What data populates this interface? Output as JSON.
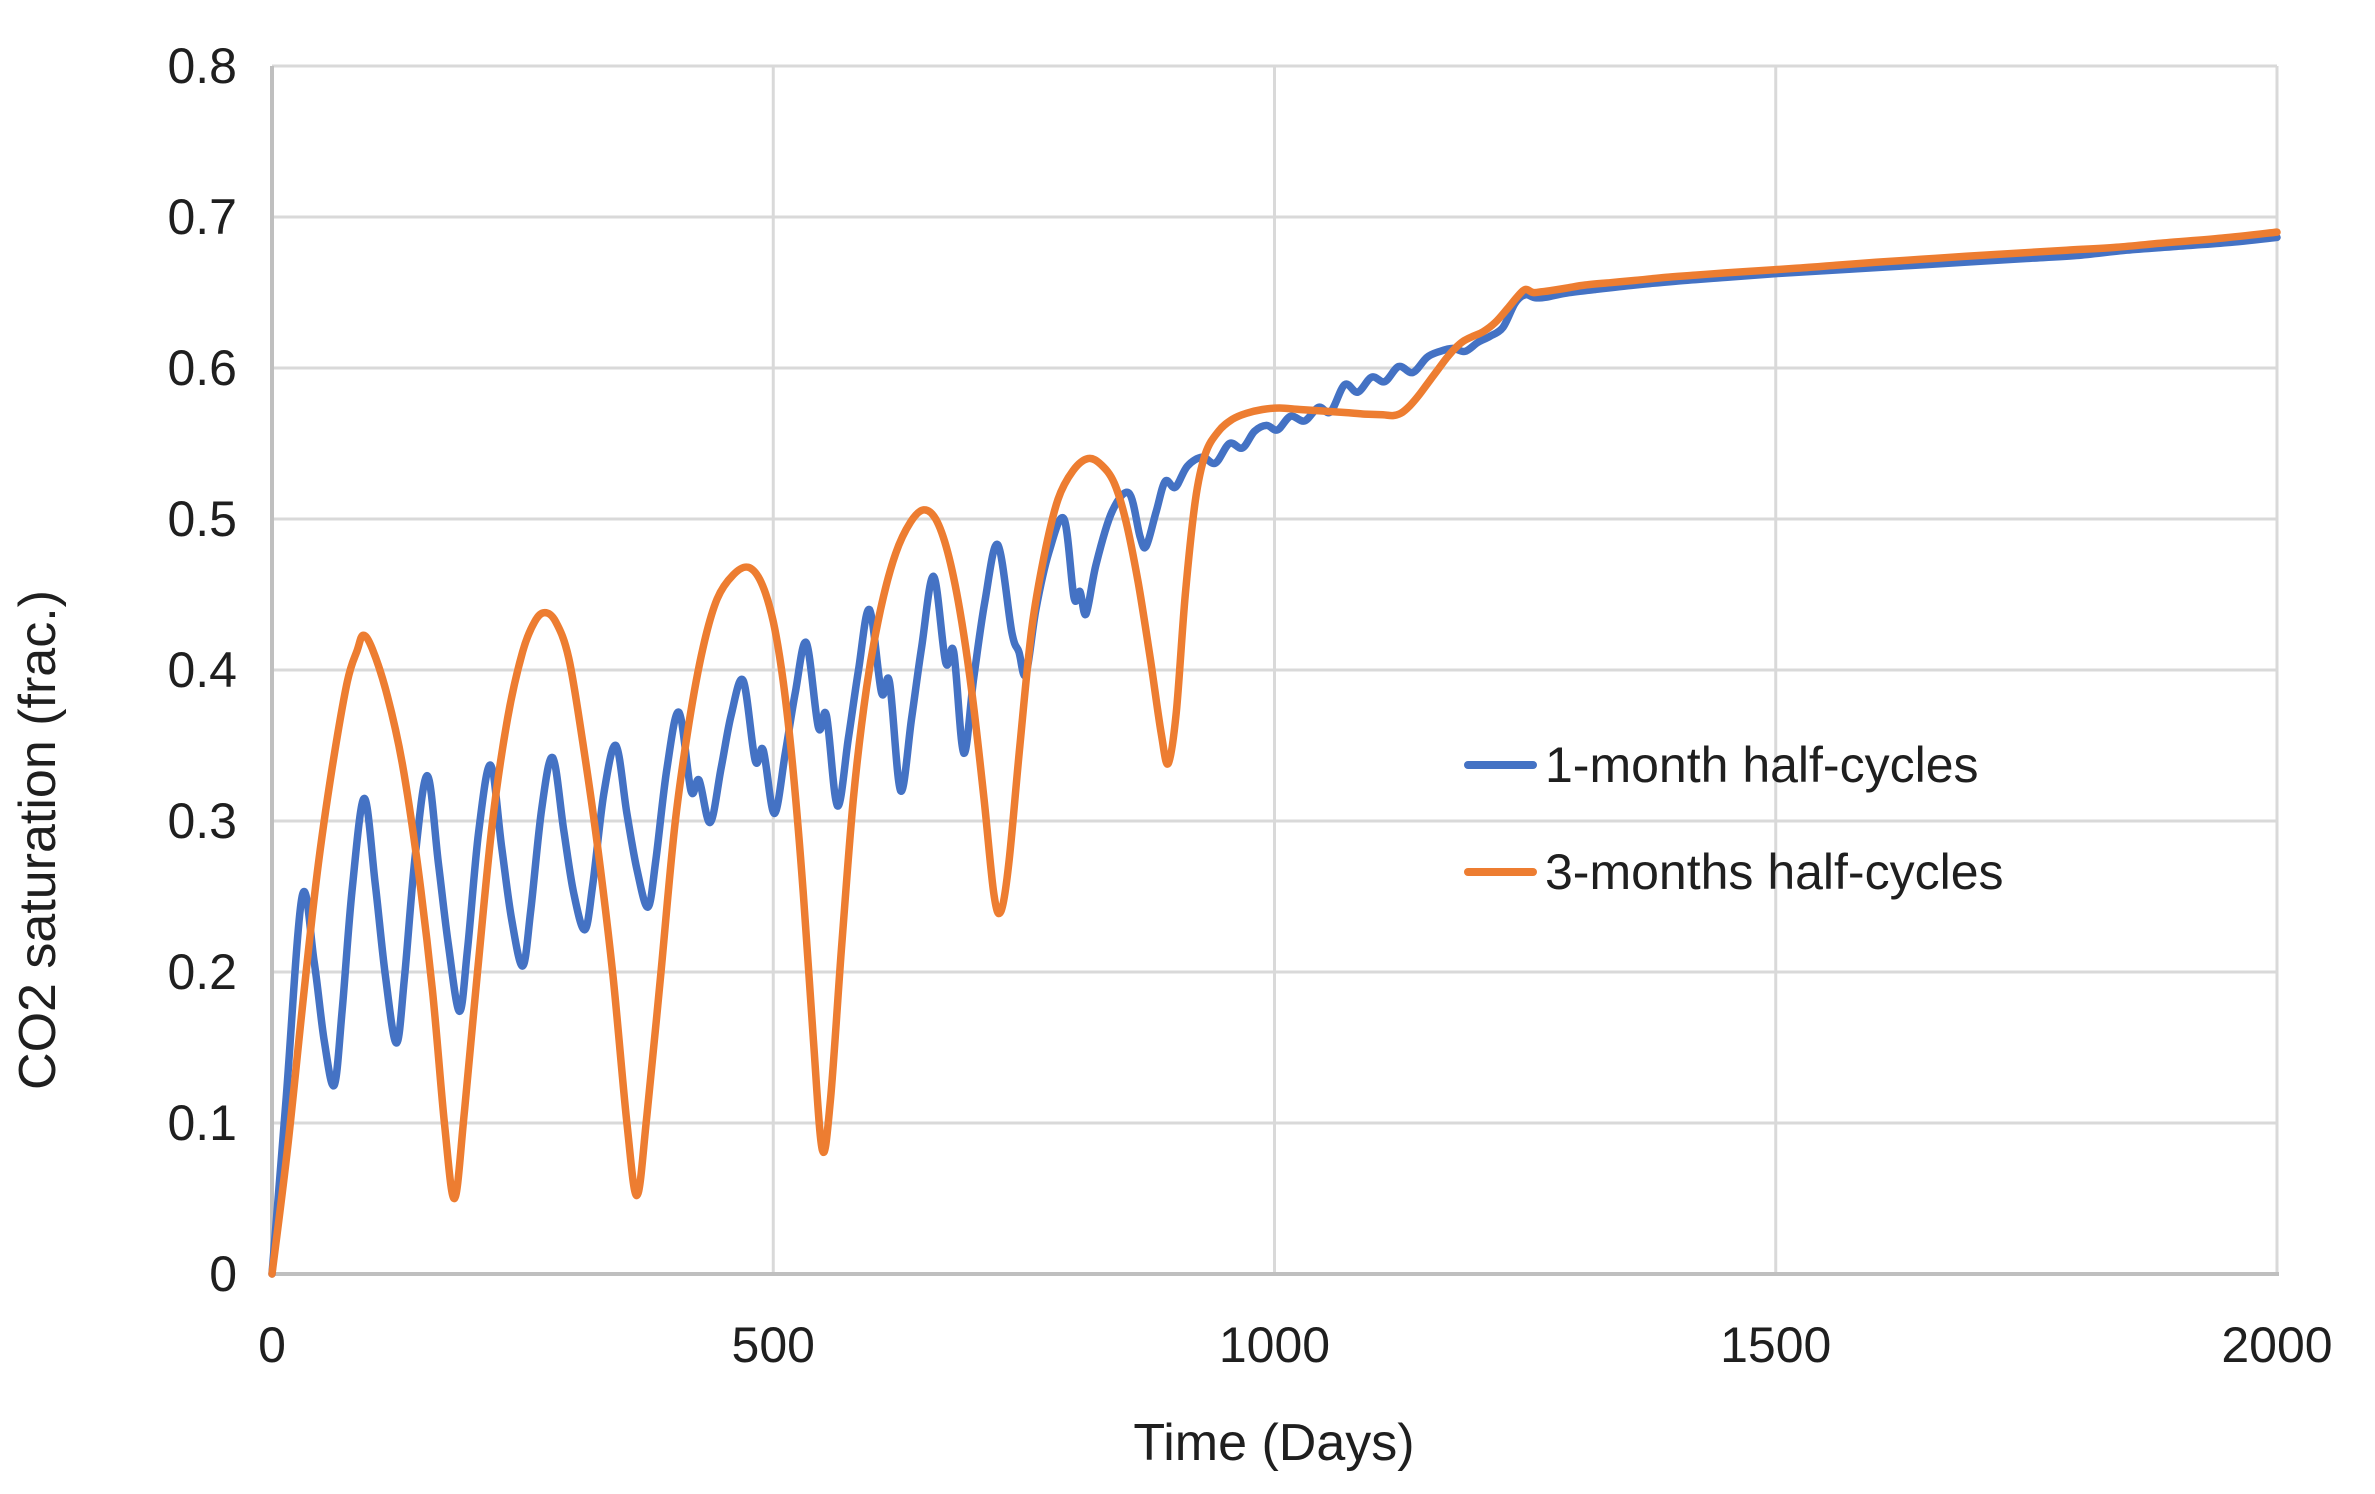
{
  "chart_data": {
    "type": "line",
    "title": "",
    "xlabel": "Time (Days)",
    "ylabel": "CO2 saturation (frac.)",
    "xlim": [
      0,
      2000
    ],
    "ylim": [
      0,
      0.8
    ],
    "grid": true,
    "legend_position": "inside-right-middle",
    "x_ticks": [
      {
        "value": 0,
        "label": "0"
      },
      {
        "value": 500,
        "label": "500"
      },
      {
        "value": 1000,
        "label": "1000"
      },
      {
        "value": 1500,
        "label": "1500"
      },
      {
        "value": 2000,
        "label": "2000"
      }
    ],
    "y_ticks": [
      {
        "value": 0,
        "label": "0"
      },
      {
        "value": 0.1,
        "label": "0.1"
      },
      {
        "value": 0.2,
        "label": "0.2"
      },
      {
        "value": 0.3,
        "label": "0.3"
      },
      {
        "value": 0.4,
        "label": "0.4"
      },
      {
        "value": 0.5,
        "label": "0.5"
      },
      {
        "value": 0.6,
        "label": "0.6"
      },
      {
        "value": 0.7,
        "label": "0.7"
      },
      {
        "value": 0.8,
        "label": "0.8"
      }
    ],
    "series": [
      {
        "name": "1-month half-cycles",
        "color": "#4472C4",
        "points": [
          [
            0,
            0
          ],
          [
            14,
            0.115
          ],
          [
            30,
            0.25
          ],
          [
            42,
            0.207
          ],
          [
            52,
            0.155
          ],
          [
            62,
            0.125
          ],
          [
            70,
            0.175
          ],
          [
            80,
            0.255
          ],
          [
            92,
            0.315
          ],
          [
            103,
            0.258
          ],
          [
            113,
            0.198
          ],
          [
            124,
            0.153
          ],
          [
            132,
            0.195
          ],
          [
            143,
            0.278
          ],
          [
            155,
            0.33
          ],
          [
            166,
            0.272
          ],
          [
            176,
            0.218
          ],
          [
            187,
            0.174
          ],
          [
            195,
            0.215
          ],
          [
            206,
            0.292
          ],
          [
            218,
            0.337
          ],
          [
            229,
            0.283
          ],
          [
            239,
            0.235
          ],
          [
            250,
            0.204
          ],
          [
            258,
            0.24
          ],
          [
            269,
            0.308
          ],
          [
            280,
            0.342
          ],
          [
            291,
            0.294
          ],
          [
            301,
            0.252
          ],
          [
            312,
            0.228
          ],
          [
            320,
            0.258
          ],
          [
            331,
            0.318
          ],
          [
            343,
            0.35
          ],
          [
            354,
            0.305
          ],
          [
            364,
            0.268
          ],
          [
            375,
            0.243
          ],
          [
            383,
            0.275
          ],
          [
            394,
            0.335
          ],
          [
            406,
            0.372
          ],
          [
            418,
            0.32
          ],
          [
            426,
            0.327
          ],
          [
            437,
            0.299
          ],
          [
            448,
            0.335
          ],
          [
            458,
            0.37
          ],
          [
            470,
            0.393
          ],
          [
            482,
            0.34
          ],
          [
            490,
            0.347
          ],
          [
            501,
            0.305
          ],
          [
            512,
            0.345
          ],
          [
            522,
            0.385
          ],
          [
            533,
            0.418
          ],
          [
            545,
            0.362
          ],
          [
            553,
            0.37
          ],
          [
            564,
            0.31
          ],
          [
            575,
            0.355
          ],
          [
            585,
            0.4
          ],
          [
            596,
            0.44
          ],
          [
            608,
            0.385
          ],
          [
            616,
            0.392
          ],
          [
            627,
            0.32
          ],
          [
            638,
            0.368
          ],
          [
            648,
            0.415
          ],
          [
            660,
            0.462
          ],
          [
            672,
            0.405
          ],
          [
            680,
            0.412
          ],
          [
            690,
            0.345
          ],
          [
            700,
            0.395
          ],
          [
            711,
            0.445
          ],
          [
            724,
            0.483
          ],
          [
            738,
            0.425
          ],
          [
            745,
            0.412
          ],
          [
            752,
            0.397
          ],
          [
            762,
            0.44
          ],
          [
            775,
            0.478
          ],
          [
            790,
            0.5
          ],
          [
            800,
            0.448
          ],
          [
            806,
            0.452
          ],
          [
            812,
            0.437
          ],
          [
            822,
            0.47
          ],
          [
            838,
            0.505
          ],
          [
            855,
            0.517
          ],
          [
            866,
            0.488
          ],
          [
            872,
            0.482
          ],
          [
            882,
            0.505
          ],
          [
            891,
            0.525
          ],
          [
            901,
            0.521
          ],
          [
            913,
            0.535
          ],
          [
            928,
            0.541
          ],
          [
            941,
            0.537
          ],
          [
            955,
            0.55
          ],
          [
            968,
            0.547
          ],
          [
            980,
            0.558
          ],
          [
            992,
            0.562
          ],
          [
            1003,
            0.559
          ],
          [
            1016,
            0.568
          ],
          [
            1030,
            0.565
          ],
          [
            1044,
            0.574
          ],
          [
            1056,
            0.571
          ],
          [
            1070,
            0.589
          ],
          [
            1083,
            0.584
          ],
          [
            1097,
            0.594
          ],
          [
            1110,
            0.591
          ],
          [
            1124,
            0.601
          ],
          [
            1138,
            0.597
          ],
          [
            1152,
            0.607
          ],
          [
            1165,
            0.611
          ],
          [
            1178,
            0.613
          ],
          [
            1190,
            0.611
          ],
          [
            1203,
            0.617
          ],
          [
            1215,
            0.621
          ],
          [
            1228,
            0.627
          ],
          [
            1240,
            0.643
          ],
          [
            1250,
            0.6485
          ],
          [
            1260,
            0.6465
          ],
          [
            1272,
            0.647
          ],
          [
            1290,
            0.6495
          ],
          [
            1320,
            0.652
          ],
          [
            1360,
            0.655
          ],
          [
            1400,
            0.6575
          ],
          [
            1450,
            0.66
          ],
          [
            1500,
            0.6625
          ],
          [
            1550,
            0.6645
          ],
          [
            1600,
            0.6665
          ],
          [
            1650,
            0.6685
          ],
          [
            1700,
            0.6705
          ],
          [
            1750,
            0.6725
          ],
          [
            1800,
            0.6745
          ],
          [
            1850,
            0.678
          ],
          [
            1900,
            0.6805
          ],
          [
            1950,
            0.683
          ],
          [
            2000,
            0.6865
          ]
        ]
      },
      {
        "name": "3-months half-cycles",
        "color": "#ED7D31",
        "points": [
          [
            0,
            0
          ],
          [
            15,
            0.08
          ],
          [
            30,
            0.175
          ],
          [
            45,
            0.265
          ],
          [
            60,
            0.335
          ],
          [
            75,
            0.392
          ],
          [
            85,
            0.413
          ],
          [
            91,
            0.423
          ],
          [
            100,
            0.414
          ],
          [
            115,
            0.383
          ],
          [
            130,
            0.338
          ],
          [
            145,
            0.272
          ],
          [
            160,
            0.188
          ],
          [
            172,
            0.1
          ],
          [
            182,
            0.05
          ],
          [
            192,
            0.108
          ],
          [
            205,
            0.2
          ],
          [
            220,
            0.3
          ],
          [
            235,
            0.368
          ],
          [
            250,
            0.412
          ],
          [
            262,
            0.432
          ],
          [
            272,
            0.438
          ],
          [
            283,
            0.432
          ],
          [
            296,
            0.408
          ],
          [
            310,
            0.352
          ],
          [
            325,
            0.282
          ],
          [
            340,
            0.198
          ],
          [
            354,
            0.1
          ],
          [
            364,
            0.052
          ],
          [
            374,
            0.105
          ],
          [
            388,
            0.2
          ],
          [
            402,
            0.298
          ],
          [
            416,
            0.365
          ],
          [
            430,
            0.415
          ],
          [
            444,
            0.447
          ],
          [
            460,
            0.463
          ],
          [
            475,
            0.468
          ],
          [
            488,
            0.458
          ],
          [
            500,
            0.432
          ],
          [
            510,
            0.392
          ],
          [
            520,
            0.332
          ],
          [
            530,
            0.252
          ],
          [
            540,
            0.155
          ],
          [
            549,
            0.082
          ],
          [
            557,
            0.115
          ],
          [
            568,
            0.215
          ],
          [
            580,
            0.315
          ],
          [
            593,
            0.388
          ],
          [
            607,
            0.44
          ],
          [
            622,
            0.477
          ],
          [
            637,
            0.498
          ],
          [
            650,
            0.506
          ],
          [
            662,
            0.5
          ],
          [
            674,
            0.478
          ],
          [
            686,
            0.44
          ],
          [
            698,
            0.386
          ],
          [
            710,
            0.316
          ],
          [
            720,
            0.252
          ],
          [
            727,
            0.24
          ],
          [
            735,
            0.272
          ],
          [
            746,
            0.35
          ],
          [
            758,
            0.428
          ],
          [
            771,
            0.478
          ],
          [
            784,
            0.513
          ],
          [
            799,
            0.532
          ],
          [
            814,
            0.54
          ],
          [
            827,
            0.536
          ],
          [
            840,
            0.524
          ],
          [
            852,
            0.498
          ],
          [
            864,
            0.458
          ],
          [
            876,
            0.408
          ],
          [
            887,
            0.358
          ],
          [
            894,
            0.338
          ],
          [
            902,
            0.372
          ],
          [
            911,
            0.45
          ],
          [
            921,
            0.512
          ],
          [
            931,
            0.543
          ],
          [
            944,
            0.558
          ],
          [
            958,
            0.566
          ],
          [
            972,
            0.57
          ],
          [
            988,
            0.5725
          ],
          [
            1005,
            0.5735
          ],
          [
            1025,
            0.5725
          ],
          [
            1048,
            0.5715
          ],
          [
            1070,
            0.5705
          ],
          [
            1090,
            0.5695
          ],
          [
            1108,
            0.569
          ],
          [
            1118,
            0.5685
          ],
          [
            1126,
            0.57
          ],
          [
            1135,
            0.575
          ],
          [
            1144,
            0.582
          ],
          [
            1153,
            0.59
          ],
          [
            1162,
            0.598
          ],
          [
            1171,
            0.606
          ],
          [
            1180,
            0.613
          ],
          [
            1189,
            0.618
          ],
          [
            1198,
            0.621
          ],
          [
            1208,
            0.624
          ],
          [
            1220,
            0.63
          ],
          [
            1232,
            0.639
          ],
          [
            1242,
            0.647
          ],
          [
            1250,
            0.652
          ],
          [
            1258,
            0.65
          ],
          [
            1267,
            0.6505
          ],
          [
            1278,
            0.6515
          ],
          [
            1292,
            0.653
          ],
          [
            1310,
            0.655
          ],
          [
            1335,
            0.6565
          ],
          [
            1360,
            0.658
          ],
          [
            1390,
            0.66
          ],
          [
            1420,
            0.6615
          ],
          [
            1450,
            0.663
          ],
          [
            1485,
            0.6645
          ],
          [
            1520,
            0.666
          ],
          [
            1560,
            0.668
          ],
          [
            1600,
            0.67
          ],
          [
            1645,
            0.672
          ],
          [
            1690,
            0.674
          ],
          [
            1740,
            0.676
          ],
          [
            1790,
            0.678
          ],
          [
            1840,
            0.68
          ],
          [
            1890,
            0.683
          ],
          [
            1945,
            0.686
          ],
          [
            2000,
            0.69
          ]
        ]
      }
    ]
  },
  "colors": {
    "background": "#FFFFFF",
    "gridline": "#D9D9D9",
    "axis_line": "#BFBFBF",
    "text": "#1F1F1F",
    "series_blue": "#4472C4",
    "series_orange": "#ED7D31"
  }
}
